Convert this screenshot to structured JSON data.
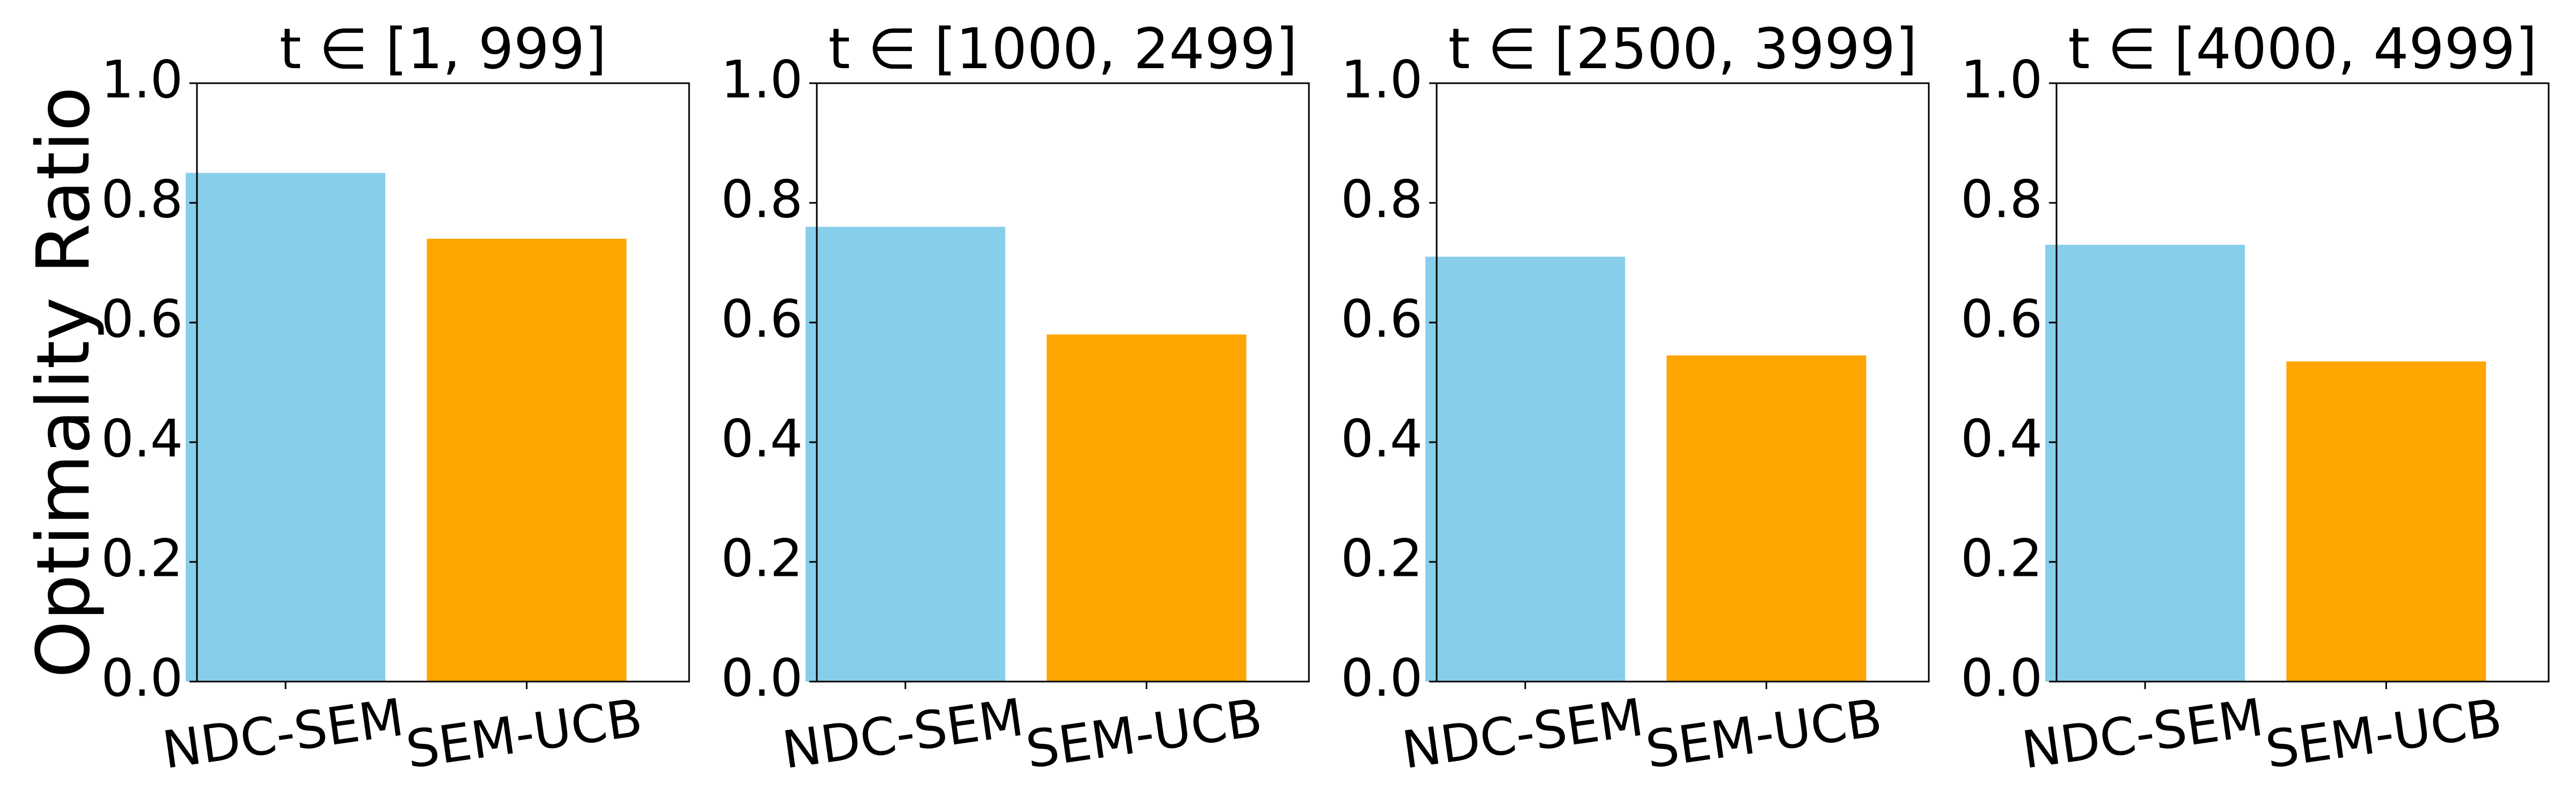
{
  "chart_data": [
    {
      "type": "bar",
      "title": "t ∈ [1, 999]",
      "ylabel": "Optimality Ratio",
      "xlabel": "",
      "categories": [
        "NDC-SEM",
        "SEM-UCB"
      ],
      "values": [
        0.85,
        0.74
      ],
      "colors": [
        "#87CEEB",
        "#FFA500"
      ],
      "ylim": [
        0.0,
        1.0
      ],
      "yticks": [
        "0.0",
        "0.2",
        "0.4",
        "0.6",
        "0.8",
        "1.0"
      ],
      "grid": false
    },
    {
      "type": "bar",
      "title": "t ∈ [1000, 2499]",
      "xlabel": "",
      "categories": [
        "NDC-SEM",
        "SEM-UCB"
      ],
      "values": [
        0.76,
        0.58
      ],
      "colors": [
        "#87CEEB",
        "#FFA500"
      ],
      "ylim": [
        0.0,
        1.0
      ],
      "yticks": [
        "0.0",
        "0.2",
        "0.4",
        "0.6",
        "0.8",
        "1.0"
      ],
      "grid": false
    },
    {
      "type": "bar",
      "title": "t ∈ [2500, 3999]",
      "xlabel": "",
      "categories": [
        "NDC-SEM",
        "SEM-UCB"
      ],
      "values": [
        0.71,
        0.545
      ],
      "colors": [
        "#87CEEB",
        "#FFA500"
      ],
      "ylim": [
        0.0,
        1.0
      ],
      "yticks": [
        "0.0",
        "0.2",
        "0.4",
        "0.6",
        "0.8",
        "1.0"
      ],
      "grid": false
    },
    {
      "type": "bar",
      "title": "t ∈ [4000, 4999]",
      "xlabel": "",
      "categories": [
        "NDC-SEM",
        "SEM-UCB"
      ],
      "values": [
        0.73,
        0.535
      ],
      "colors": [
        "#87CEEB",
        "#FFA500"
      ],
      "ylim": [
        0.0,
        1.0
      ],
      "yticks": [
        "0.0",
        "0.2",
        "0.4",
        "0.6",
        "0.8",
        "1.0"
      ],
      "grid": false
    }
  ]
}
